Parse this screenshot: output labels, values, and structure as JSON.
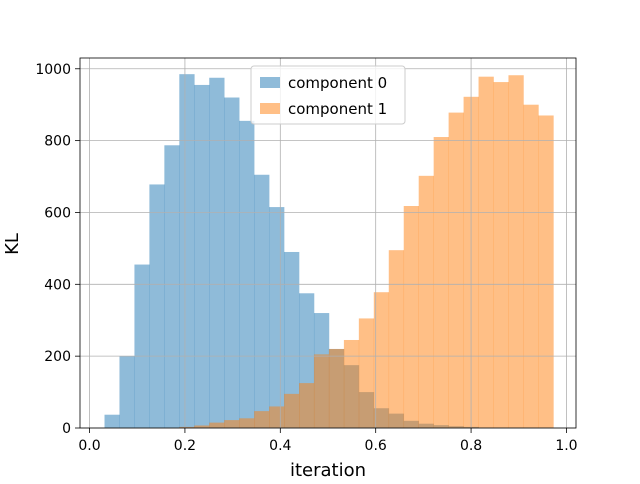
{
  "chart_data": {
    "type": "bar",
    "subtype": "overlapping-histogram",
    "xlabel": "iteration",
    "ylabel": "KL",
    "xlim": [
      -0.02,
      1.02
    ],
    "ylim": [
      0,
      1030
    ],
    "xticks": [
      0.0,
      0.2,
      0.4,
      0.6,
      0.8,
      1.0
    ],
    "xtick_labels": [
      "0.0",
      "0.2",
      "0.4",
      "0.6",
      "0.8",
      "1.0"
    ],
    "yticks": [
      0,
      200,
      400,
      600,
      800,
      1000
    ],
    "ytick_labels": [
      "0",
      "200",
      "400",
      "600",
      "800",
      "1000"
    ],
    "grid": true,
    "legend_position": "top-center",
    "bins": {
      "start": 0.0314,
      "width": 0.03137,
      "count": 30
    },
    "series": [
      {
        "name": "component 0",
        "color": "#1f77b4",
        "opacity": 0.5,
        "values": [
          37,
          200,
          455,
          678,
          787,
          985,
          955,
          975,
          920,
          855,
          705,
          615,
          490,
          375,
          320,
          220,
          175,
          100,
          55,
          40,
          20,
          12,
          8,
          5,
          3,
          0,
          0,
          0,
          0,
          0
        ]
      },
      {
        "name": "component 1",
        "color": "#ff7f0e",
        "opacity": 0.5,
        "values": [
          0,
          0,
          0,
          0,
          0,
          3,
          7,
          15,
          22,
          27,
          47,
          60,
          95,
          125,
          205,
          220,
          245,
          305,
          378,
          495,
          618,
          702,
          810,
          878,
          922,
          978,
          963,
          982,
          900,
          870
        ]
      }
    ]
  }
}
